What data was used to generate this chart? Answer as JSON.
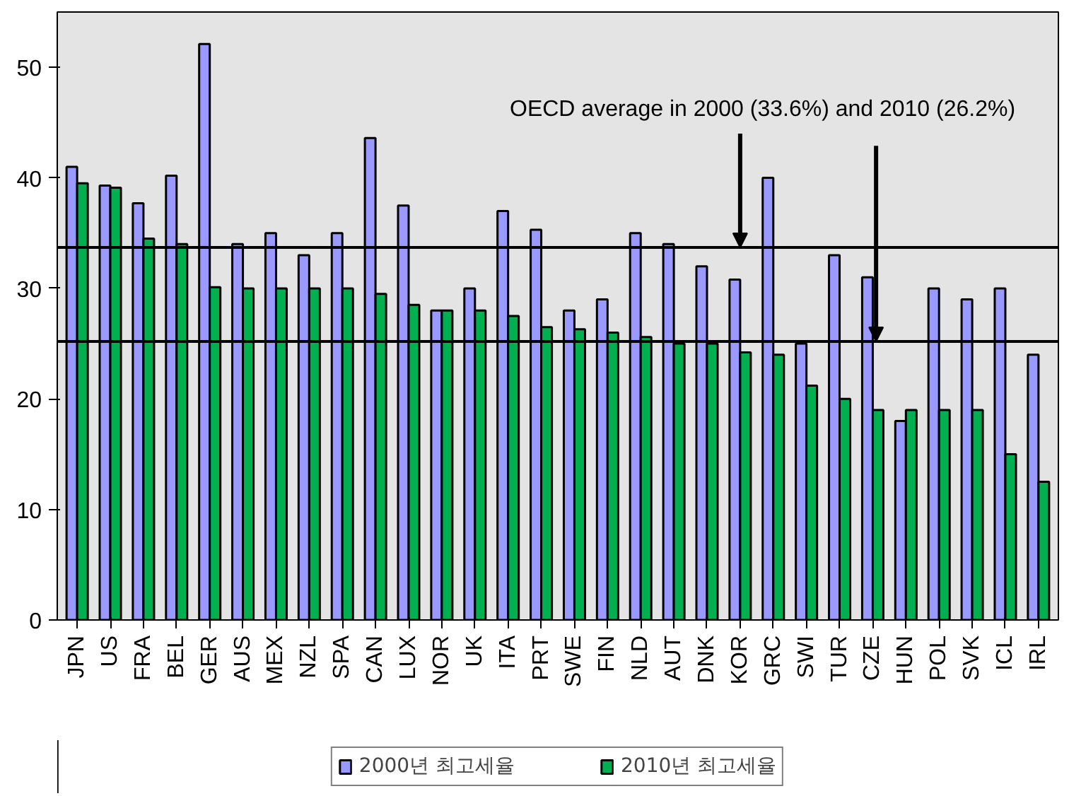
{
  "chart_data": {
    "type": "bar",
    "categories": [
      "JPN",
      "US",
      "FRA",
      "BEL",
      "GER",
      "AUS",
      "MEX",
      "NZL",
      "SPA",
      "CAN",
      "LUX",
      "NOR",
      "UK",
      "ITA",
      "PRT",
      "SWE",
      "FIN",
      "NLD",
      "AUT",
      "DNK",
      "KOR",
      "GRC",
      "SWI",
      "TUR",
      "CZE",
      "HUN",
      "POL",
      "SVK",
      "ICL",
      "IRL"
    ],
    "series": [
      {
        "name": "2000년 최고세율",
        "color": "#9999ff",
        "values": [
          41,
          39.3,
          37.7,
          40.2,
          52.1,
          34,
          35,
          33,
          35,
          43.6,
          37.5,
          28,
          30,
          37,
          35.3,
          28,
          29,
          35,
          34,
          32,
          30.8,
          40,
          25,
          33,
          31,
          18,
          30,
          29,
          30,
          24
        ]
      },
      {
        "name": "2010년 최고세율",
        "color": "#00b050",
        "values": [
          39.5,
          39.1,
          34.5,
          34,
          30.1,
          30,
          30,
          30,
          30,
          29.5,
          28.5,
          28,
          28,
          27.5,
          26.5,
          26.3,
          26,
          25.6,
          25,
          25,
          24.2,
          24,
          21.2,
          20,
          19,
          19,
          19,
          19,
          15,
          12.5
        ]
      }
    ],
    "ylim": [
      0,
      55
    ],
    "yticks": [
      0,
      10,
      20,
      30,
      40,
      50
    ],
    "ref_lines": [
      {
        "axis": "y",
        "value": 33.7,
        "label": null,
        "color": "#000000"
      },
      {
        "axis": "y",
        "value": 25.2,
        "label": null,
        "color": "#000000"
      }
    ],
    "annotations": [
      {
        "text": "OECD average in 2000 (33.6%) and 2010 (26.2%)",
        "x": "KOR",
        "y": 33.7
      }
    ],
    "legend": "bottom",
    "grid": false
  }
}
